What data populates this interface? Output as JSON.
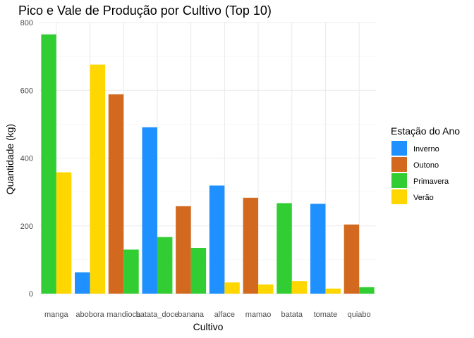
{
  "chart_data": {
    "type": "bar",
    "title": "Pico e Vale de Produção por Cultivo (Top 10)",
    "xlabel": "Cultivo",
    "ylabel": "Quantidade (kg)",
    "ylim": [
      0,
      800
    ],
    "yticks": [
      0,
      200,
      400,
      600,
      800
    ],
    "grid": true,
    "legend_position": "right",
    "legend_title": "Estação do Ano",
    "seasons": [
      {
        "name": "Inverno",
        "color": "#1E90FF"
      },
      {
        "name": "Outono",
        "color": "#D2691E"
      },
      {
        "name": "Primavera",
        "color": "#32CD32"
      },
      {
        "name": "Verão",
        "color": "#FFD700"
      }
    ],
    "categories": [
      "manga",
      "abobora",
      "mandioca",
      "batata_doce",
      "banana",
      "alface",
      "mamao",
      "batata",
      "tomate",
      "quiabo"
    ],
    "bars": [
      {
        "category": "manga",
        "season": "Primavera",
        "value": 765
      },
      {
        "category": "manga",
        "season": "Verão",
        "value": 358
      },
      {
        "category": "abobora",
        "season": "Inverno",
        "value": 63
      },
      {
        "category": "abobora",
        "season": "Verão",
        "value": 676
      },
      {
        "category": "mandioca",
        "season": "Outono",
        "value": 588
      },
      {
        "category": "mandioca",
        "season": "Primavera",
        "value": 130
      },
      {
        "category": "batata_doce",
        "season": "Inverno",
        "value": 491
      },
      {
        "category": "batata_doce",
        "season": "Primavera",
        "value": 167
      },
      {
        "category": "banana",
        "season": "Outono",
        "value": 258
      },
      {
        "category": "banana",
        "season": "Primavera",
        "value": 135
      },
      {
        "category": "alface",
        "season": "Inverno",
        "value": 319
      },
      {
        "category": "alface",
        "season": "Verão",
        "value": 33
      },
      {
        "category": "mamao",
        "season": "Outono",
        "value": 283
      },
      {
        "category": "mamao",
        "season": "Verão",
        "value": 27
      },
      {
        "category": "batata",
        "season": "Primavera",
        "value": 267
      },
      {
        "category": "batata",
        "season": "Verão",
        "value": 37
      },
      {
        "category": "tomate",
        "season": "Inverno",
        "value": 265
      },
      {
        "category": "tomate",
        "season": "Verão",
        "value": 15
      },
      {
        "category": "quiabo",
        "season": "Outono",
        "value": 204
      },
      {
        "category": "quiabo",
        "season": "Primavera",
        "value": 19
      }
    ]
  }
}
